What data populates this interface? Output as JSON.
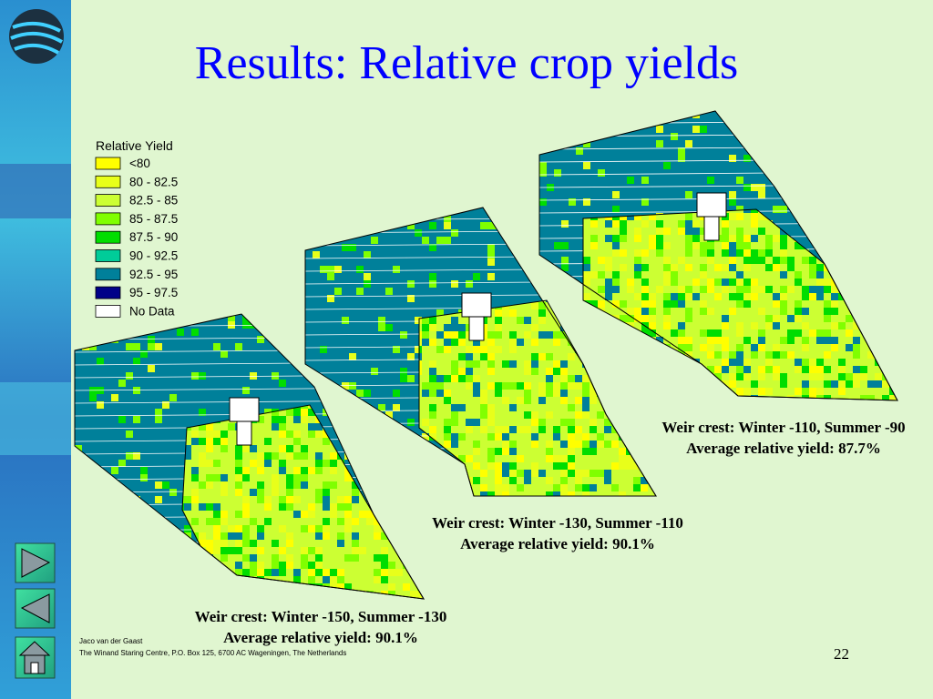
{
  "title": "Results: Relative crop yields",
  "legend": {
    "title": "Relative Yield",
    "items": [
      {
        "label": "<80",
        "color": "#ffff00"
      },
      {
        "label": "80 - 82.5",
        "color": "#e8ff1a"
      },
      {
        "label": "82.5 - 85",
        "color": "#ccff33"
      },
      {
        "label": "85 - 87.5",
        "color": "#80ff00"
      },
      {
        "label": "87.5 - 90",
        "color": "#00dd00"
      },
      {
        "label": "90 - 92.5",
        "color": "#00cc99"
      },
      {
        "label": "92.5 - 95",
        "color": "#00809a"
      },
      {
        "label": "95 - 97.5",
        "color": "#000088"
      },
      {
        "label": "No Data",
        "color": "#ffffff"
      }
    ]
  },
  "maps": [
    {
      "caption": [
        "Weir crest: Winter -150, Summer -130",
        "Average relative yield: 90.1%"
      ]
    },
    {
      "caption": [
        "Weir crest: Winter -130, Summer -110",
        "Average relative yield: 90.1%"
      ]
    },
    {
      "caption": [
        "Weir crest: Winter -110, Summer -90",
        "Average relative yield: 87.7%"
      ]
    }
  ],
  "footer": {
    "author": "Jaco van der Gaast",
    "organization": "The Winand Staring Centre, P.O. Box 125, 6700 AC Wageningen, The Netherlands"
  },
  "page_number": "22"
}
